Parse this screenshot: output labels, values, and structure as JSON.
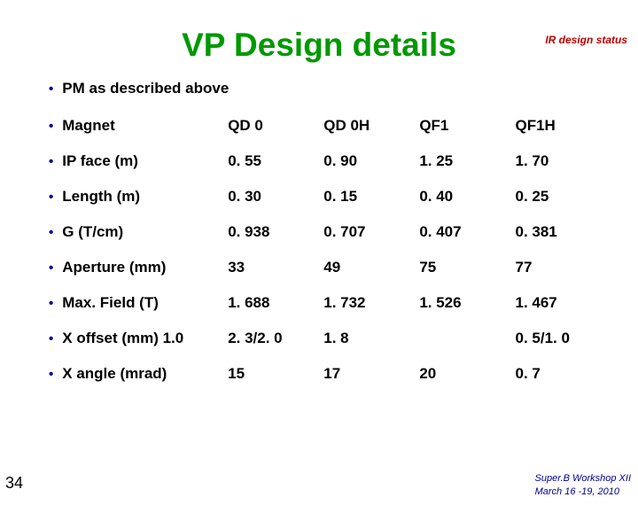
{
  "header_right": "IR design status",
  "title": "VP Design details",
  "subtitle": "PM as described above",
  "title_color": "#009900",
  "bullet_color": "#000099",
  "text_color": "#000000",
  "header_color": "#c00000",
  "footer_color": "#000099",
  "background_color": "#ffffff",
  "fontsize_title": 37,
  "fontsize_body": 17,
  "columns": [
    "QD 0",
    "QD 0H",
    "QF1",
    "QF1H"
  ],
  "rows": [
    {
      "label": "Magnet",
      "values": [
        "QD 0",
        "QD 0H",
        "QF1",
        "QF1H"
      ]
    },
    {
      "label": "IP face (m)",
      "values": [
        "0. 55",
        "0. 90",
        "1. 25",
        "1. 70"
      ]
    },
    {
      "label": "Length (m)",
      "values": [
        "0. 30",
        "0. 15",
        "0. 40",
        "0. 25"
      ]
    },
    {
      "label": "G (T/cm)",
      "values": [
        "0. 938",
        "0. 707",
        "0. 407",
        "0. 381"
      ]
    },
    {
      "label": "Aperture (mm)",
      "values": [
        "33",
        "49",
        "75",
        "77"
      ]
    },
    {
      "label": "Max. Field (T)",
      "values": [
        "1. 688",
        "1. 732",
        "1. 526",
        "1. 467"
      ]
    },
    {
      "label": "X offset (mm) 1.0",
      "values": [
        "2. 3/2. 0",
        "1. 8",
        "",
        "0. 5/1. 0"
      ]
    },
    {
      "label": "X angle (mrad)",
      "values": [
        "15",
        "17",
        "20",
        "0. 7"
      ]
    }
  ],
  "page_number": "34",
  "footer_line1": "Super.B Workshop XII",
  "footer_line2": "March 16 -19, 2010"
}
